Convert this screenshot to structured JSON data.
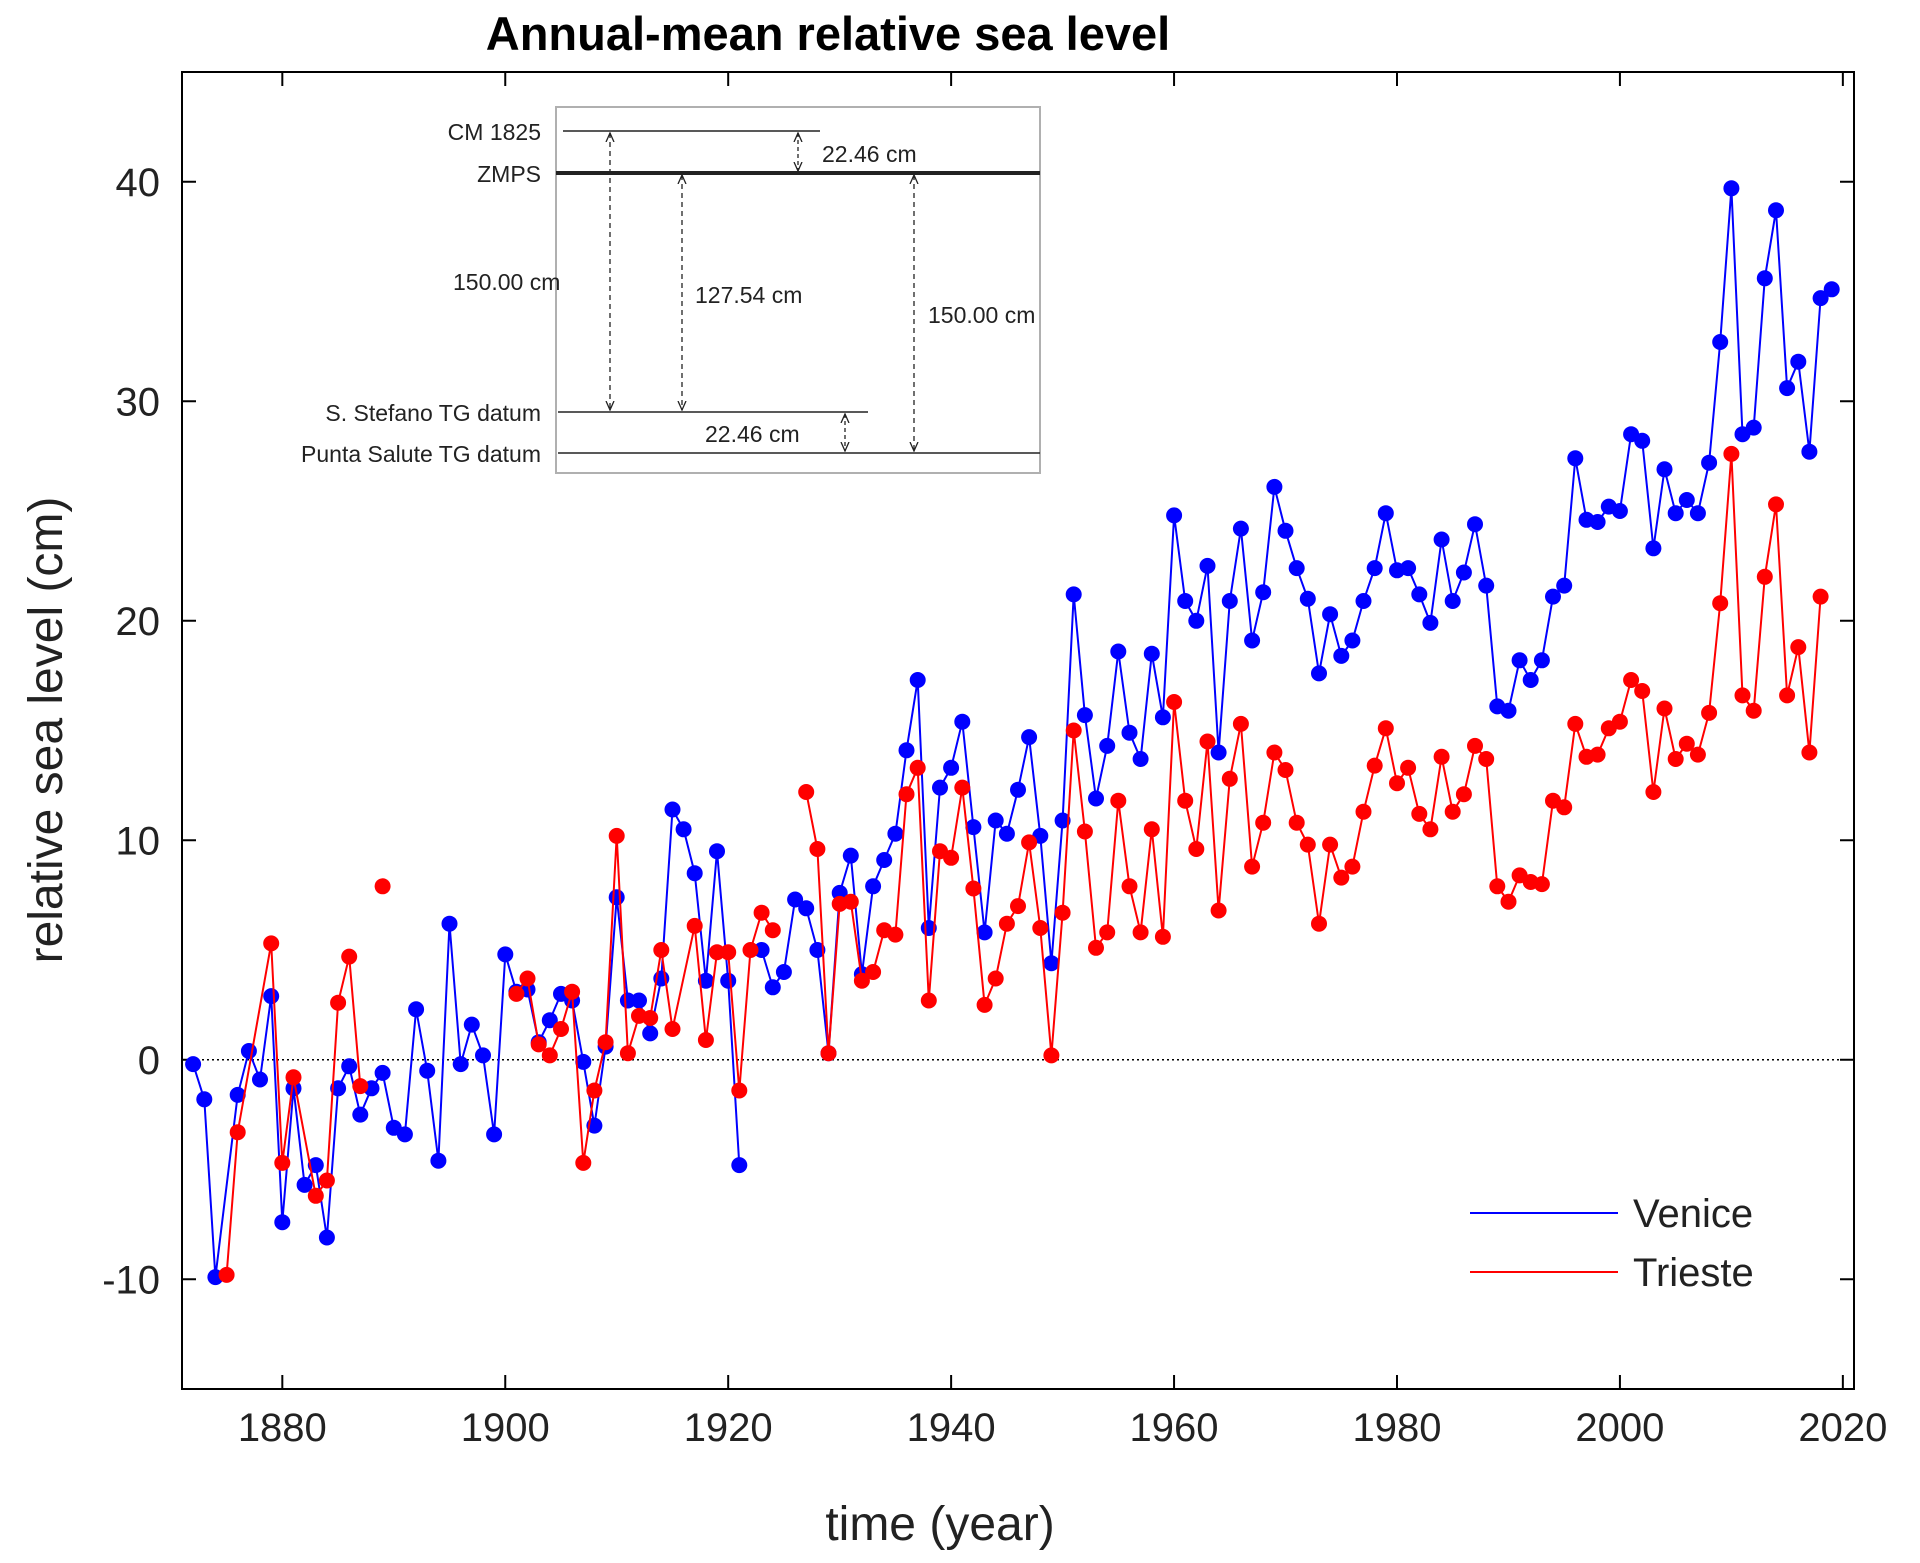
{
  "chart_data": {
    "type": "line",
    "title": "Annual-mean relative sea level",
    "xlabel": "time (year)",
    "ylabel": "relative sea level (cm)",
    "xlim": [
      1871,
      2021
    ],
    "ylim": [
      -15,
      45
    ],
    "xticks": [
      1880,
      1900,
      1920,
      1940,
      1960,
      1980,
      2000,
      2020
    ],
    "yticks": [
      -10,
      0,
      10,
      20,
      30,
      40
    ],
    "zero_line": "dotted",
    "legend_position": "bottom-right",
    "colors": {
      "Venice": "#0000ff",
      "Trieste": "#ff0000"
    },
    "series": [
      {
        "name": "Venice",
        "color": "#0000ff",
        "points": [
          [
            1872,
            -0.2
          ],
          [
            1873,
            -1.8
          ],
          [
            1874,
            -9.9
          ],
          [
            1876,
            -1.6
          ],
          [
            1877,
            0.4
          ],
          [
            1878,
            -0.9
          ],
          [
            1879,
            2.9
          ],
          [
            1880,
            -7.4
          ],
          [
            1881,
            -1.3
          ],
          [
            1882,
            -5.7
          ],
          [
            1883,
            -4.8
          ],
          [
            1884,
            -8.1
          ],
          [
            1885,
            -1.3
          ],
          [
            1886,
            -0.3
          ],
          [
            1887,
            -2.5
          ],
          [
            1888,
            -1.3
          ],
          [
            1889,
            -0.6
          ],
          [
            1890,
            -3.1
          ],
          [
            1891,
            -3.4
          ],
          [
            1892,
            2.3
          ],
          [
            1893,
            -0.5
          ],
          [
            1894,
            -4.6
          ],
          [
            1895,
            6.2
          ],
          [
            1896,
            -0.2
          ],
          [
            1897,
            1.6
          ],
          [
            1898,
            0.2
          ],
          [
            1899,
            -3.4
          ],
          [
            1900,
            4.8
          ],
          [
            1901,
            3.1
          ],
          [
            1902,
            3.2
          ],
          [
            1903,
            0.8
          ],
          [
            1904,
            1.8
          ],
          [
            1905,
            3.0
          ],
          [
            1906,
            2.7
          ],
          [
            1907,
            -0.1
          ],
          [
            1908,
            -3.0
          ],
          [
            1909,
            0.6
          ],
          [
            1910,
            7.4
          ],
          [
            1911,
            2.7
          ],
          [
            1912,
            2.7
          ],
          [
            1913,
            1.2
          ],
          [
            1914,
            3.7
          ],
          [
            1915,
            11.4
          ],
          [
            1916,
            10.5
          ],
          [
            1917,
            8.5
          ],
          [
            1918,
            3.6
          ],
          [
            1919,
            9.5
          ],
          [
            1920,
            3.6
          ],
          [
            1921,
            -4.8
          ]
        ],
        "points_2": [
          [
            1923,
            5.0
          ],
          [
            1924,
            3.3
          ],
          [
            1925,
            4.0
          ],
          [
            1926,
            7.3
          ],
          [
            1927,
            6.9
          ],
          [
            1928,
            5.0
          ],
          [
            1929,
            0.3
          ],
          [
            1930,
            7.6
          ],
          [
            1931,
            9.3
          ],
          [
            1932,
            3.9
          ],
          [
            1933,
            7.9
          ],
          [
            1934,
            9.1
          ],
          [
            1935,
            10.3
          ],
          [
            1936,
            14.1
          ],
          [
            1937,
            17.3
          ],
          [
            1938,
            6.0
          ],
          [
            1939,
            12.4
          ],
          [
            1940,
            13.3
          ],
          [
            1941,
            15.4
          ],
          [
            1942,
            10.6
          ],
          [
            1943,
            5.8
          ],
          [
            1944,
            10.9
          ],
          [
            1945,
            10.3
          ],
          [
            1946,
            12.3
          ],
          [
            1947,
            14.7
          ],
          [
            1948,
            10.2
          ],
          [
            1949,
            4.4
          ],
          [
            1950,
            10.9
          ],
          [
            1951,
            21.2
          ],
          [
            1952,
            15.7
          ],
          [
            1953,
            11.9
          ],
          [
            1954,
            14.3
          ],
          [
            1955,
            18.6
          ],
          [
            1956,
            14.9
          ],
          [
            1957,
            13.7
          ],
          [
            1958,
            18.5
          ],
          [
            1959,
            15.6
          ],
          [
            1960,
            24.8
          ],
          [
            1961,
            20.9
          ],
          [
            1962,
            20.0
          ],
          [
            1963,
            22.5
          ],
          [
            1964,
            14.0
          ],
          [
            1965,
            20.9
          ],
          [
            1966,
            24.2
          ],
          [
            1967,
            19.1
          ],
          [
            1968,
            21.3
          ],
          [
            1969,
            26.1
          ],
          [
            1970,
            24.1
          ],
          [
            1971,
            22.4
          ],
          [
            1972,
            21.0
          ],
          [
            1973,
            17.6
          ],
          [
            1974,
            20.3
          ],
          [
            1975,
            18.4
          ],
          [
            1976,
            19.1
          ],
          [
            1977,
            20.9
          ],
          [
            1978,
            22.4
          ],
          [
            1979,
            24.9
          ],
          [
            1980,
            22.3
          ],
          [
            1981,
            22.4
          ],
          [
            1982,
            21.2
          ],
          [
            1983,
            19.9
          ],
          [
            1984,
            23.7
          ],
          [
            1985,
            20.9
          ],
          [
            1986,
            22.2
          ],
          [
            1987,
            24.4
          ],
          [
            1988,
            21.6
          ],
          [
            1989,
            16.1
          ],
          [
            1990,
            15.9
          ],
          [
            1991,
            18.2
          ],
          [
            1992,
            17.3
          ],
          [
            1993,
            18.2
          ],
          [
            1994,
            21.1
          ],
          [
            1995,
            21.6
          ],
          [
            1996,
            27.4
          ],
          [
            1997,
            24.6
          ],
          [
            1998,
            24.5
          ],
          [
            1999,
            25.2
          ],
          [
            2000,
            25.0
          ],
          [
            2001,
            28.5
          ],
          [
            2002,
            28.2
          ],
          [
            2003,
            23.3
          ],
          [
            2004,
            26.9
          ],
          [
            2005,
            24.9
          ],
          [
            2006,
            25.5
          ],
          [
            2007,
            24.9
          ],
          [
            2008,
            27.2
          ],
          [
            2009,
            32.7
          ],
          [
            2010,
            39.7
          ],
          [
            2011,
            28.5
          ],
          [
            2012,
            28.8
          ],
          [
            2013,
            35.6
          ],
          [
            2014,
            38.7
          ],
          [
            2015,
            30.6
          ],
          [
            2016,
            31.8
          ],
          [
            2017,
            27.7
          ],
          [
            2018,
            34.7
          ],
          [
            2019,
            35.1
          ]
        ]
      },
      {
        "name": "Trieste",
        "color": "#ff0000",
        "points": [
          [
            1875,
            -9.8
          ],
          [
            1876,
            -3.3
          ],
          [
            1879,
            5.3
          ],
          [
            1880,
            -4.7
          ],
          [
            1881,
            -0.8
          ],
          [
            1883,
            -6.2
          ],
          [
            1884,
            -5.5
          ],
          [
            1885,
            2.6
          ],
          [
            1886,
            4.7
          ],
          [
            1887,
            -1.2
          ]
        ],
        "points_isolated": [
          [
            1889,
            7.9
          ]
        ],
        "points_2": [
          [
            1901,
            3.0
          ],
          [
            1902,
            3.7
          ],
          [
            1903,
            0.7
          ],
          [
            1904,
            0.2
          ],
          [
            1905,
            1.4
          ],
          [
            1906,
            3.1
          ],
          [
            1907,
            -4.7
          ],
          [
            1908,
            -1.4
          ],
          [
            1909,
            0.8
          ],
          [
            1910,
            10.2
          ],
          [
            1911,
            0.3
          ],
          [
            1912,
            2.0
          ],
          [
            1913,
            1.9
          ],
          [
            1914,
            5.0
          ],
          [
            1915,
            1.4
          ],
          [
            1917,
            6.1
          ],
          [
            1918,
            0.9
          ],
          [
            1919,
            4.9
          ],
          [
            1920,
            4.9
          ],
          [
            1921,
            -1.4
          ],
          [
            1922,
            5.0
          ],
          [
            1923,
            6.7
          ],
          [
            1924,
            5.9
          ]
        ],
        "points_3": [
          [
            1927,
            12.2
          ],
          [
            1928,
            9.6
          ],
          [
            1929,
            0.3
          ],
          [
            1930,
            7.1
          ],
          [
            1931,
            7.2
          ],
          [
            1932,
            3.6
          ],
          [
            1933,
            4.0
          ],
          [
            1934,
            5.9
          ],
          [
            1935,
            5.7
          ],
          [
            1936,
            12.1
          ],
          [
            1937,
            13.3
          ],
          [
            1938,
            2.7
          ],
          [
            1939,
            9.5
          ],
          [
            1940,
            9.2
          ],
          [
            1941,
            12.4
          ],
          [
            1942,
            7.8
          ],
          [
            1943,
            2.5
          ],
          [
            1944,
            3.7
          ],
          [
            1945,
            6.2
          ],
          [
            1946,
            7.0
          ],
          [
            1947,
            9.9
          ],
          [
            1948,
            6.0
          ],
          [
            1949,
            0.2
          ],
          [
            1950,
            6.7
          ],
          [
            1951,
            15.0
          ],
          [
            1952,
            10.4
          ],
          [
            1953,
            5.1
          ],
          [
            1954,
            5.8
          ],
          [
            1955,
            11.8
          ],
          [
            1956,
            7.9
          ],
          [
            1957,
            5.8
          ],
          [
            1958,
            10.5
          ],
          [
            1959,
            5.6
          ],
          [
            1960,
            16.3
          ],
          [
            1961,
            11.8
          ],
          [
            1962,
            9.6
          ],
          [
            1963,
            14.5
          ],
          [
            1964,
            6.8
          ],
          [
            1965,
            12.8
          ],
          [
            1966,
            15.3
          ],
          [
            1967,
            8.8
          ],
          [
            1968,
            10.8
          ],
          [
            1969,
            14.0
          ],
          [
            1970,
            13.2
          ],
          [
            1971,
            10.8
          ],
          [
            1972,
            9.8
          ],
          [
            1973,
            6.2
          ],
          [
            1974,
            9.8
          ],
          [
            1975,
            8.3
          ],
          [
            1976,
            8.8
          ],
          [
            1977,
            11.3
          ],
          [
            1978,
            13.4
          ],
          [
            1979,
            15.1
          ],
          [
            1980,
            12.6
          ],
          [
            1981,
            13.3
          ],
          [
            1982,
            11.2
          ],
          [
            1983,
            10.5
          ],
          [
            1984,
            13.8
          ],
          [
            1985,
            11.3
          ],
          [
            1986,
            12.1
          ],
          [
            1987,
            14.3
          ],
          [
            1988,
            13.7
          ],
          [
            1989,
            7.9
          ],
          [
            1990,
            7.2
          ],
          [
            1991,
            8.4
          ],
          [
            1992,
            8.1
          ],
          [
            1993,
            8.0
          ],
          [
            1994,
            11.8
          ],
          [
            1995,
            11.5
          ],
          [
            1996,
            15.3
          ],
          [
            1997,
            13.8
          ],
          [
            1998,
            13.9
          ],
          [
            1999,
            15.1
          ],
          [
            2000,
            15.4
          ],
          [
            2001,
            17.3
          ],
          [
            2002,
            16.8
          ],
          [
            2003,
            12.2
          ],
          [
            2004,
            16.0
          ],
          [
            2005,
            13.7
          ],
          [
            2006,
            14.4
          ],
          [
            2007,
            13.9
          ],
          [
            2008,
            15.8
          ],
          [
            2009,
            20.8
          ],
          [
            2010,
            27.6
          ],
          [
            2011,
            16.6
          ],
          [
            2012,
            15.9
          ],
          [
            2013,
            22.0
          ],
          [
            2014,
            25.3
          ],
          [
            2015,
            16.6
          ],
          [
            2016,
            18.8
          ],
          [
            2017,
            14.0
          ],
          [
            2018,
            21.1
          ]
        ]
      }
    ],
    "legend": [
      "Venice",
      "Trieste"
    ]
  },
  "inset": {
    "cm1825_label": "CM 1825",
    "zmps_label": "ZMPS",
    "stefano_label": "S. Stefano TG datum",
    "salute_label": "Punta Salute TG datum",
    "dim_top": "22.46 cm",
    "dim_left": "150.00 cm",
    "dim_mid": "127.54 cm",
    "dim_right": "150.00 cm",
    "dim_bottom": "22.46 cm"
  }
}
